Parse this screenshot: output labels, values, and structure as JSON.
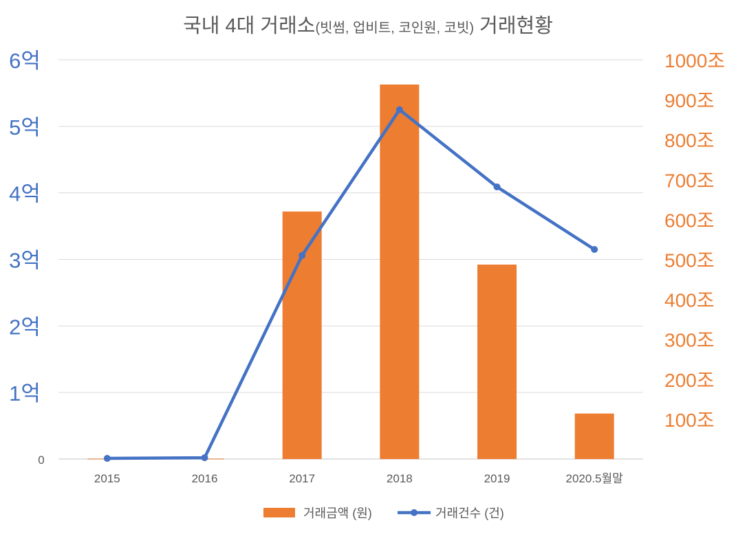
{
  "chart_data": {
    "type": "bar+line",
    "title_parts": [
      "국내 4대 거래소",
      "(빗썸, 업비트, 코인원, 코빗)",
      " 거래현황"
    ],
    "categories": [
      "2015",
      "2016",
      "2017",
      "2018",
      "2019",
      "2020.5월말"
    ],
    "series": [
      {
        "name": "거래금액 (원)",
        "type": "bar",
        "axis": "right",
        "unit": "조",
        "color": "#ED7D31",
        "values": [
          1,
          1,
          620,
          938,
          487,
          114
        ]
      },
      {
        "name": "거래건수 (건)",
        "type": "line",
        "axis": "left",
        "unit": "억",
        "color": "#4472C4",
        "values": [
          0.01,
          0.02,
          3.06,
          5.25,
          4.09,
          3.15
        ]
      }
    ],
    "left_axis": {
      "range": [
        0,
        6
      ],
      "ticks": [
        "0",
        "1억",
        "2억",
        "3억",
        "4억",
        "5억",
        "6억"
      ],
      "color": "#4472C4"
    },
    "right_axis": {
      "range": [
        0,
        1000
      ],
      "ticks": [
        "100조",
        "200조",
        "300조",
        "400조",
        "500조",
        "600조",
        "700조",
        "800조",
        "900조",
        "1000조"
      ],
      "color": "#ED7D31"
    },
    "grid": true,
    "legend": "bottom"
  }
}
